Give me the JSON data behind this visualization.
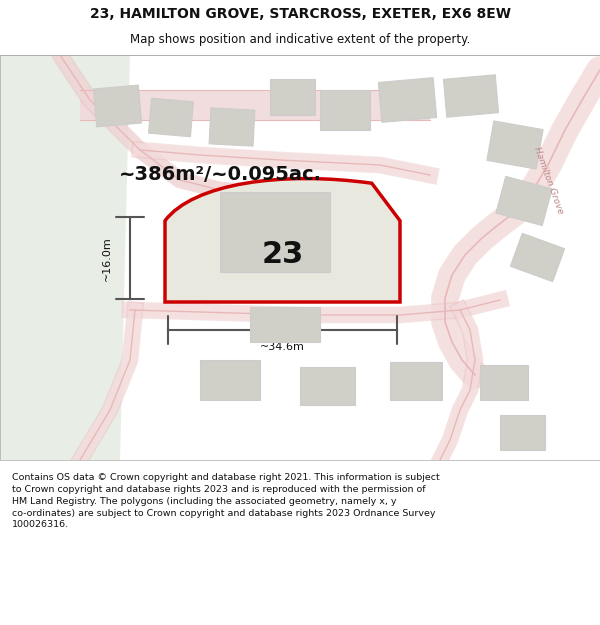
{
  "title": "23, HAMILTON GROVE, STARCROSS, EXETER, EX6 8EW",
  "subtitle": "Map shows position and indicative extent of the property.",
  "footer": "Contains OS data © Crown copyright and database right 2021. This information is subject\nto Crown copyright and database rights 2023 and is reproduced with the permission of\nHM Land Registry. The polygons (including the associated geometry, namely x, y\nco-ordinates) are subject to Crown copyright and database rights 2023 Ordnance Survey\n100026316.",
  "area_label": "~386m²/~0.095ac.",
  "width_label": "~34.6m",
  "height_label": "~16.0m",
  "plot_number": "23",
  "bg_color": "#f5f5f0",
  "map_bg": "#f5f5f0",
  "plot_fill": "#e8e8e0",
  "plot_border": "#cc0000",
  "building_fill": "#d0d0c8",
  "road_color": "#e8b8b8",
  "road_fill": "#f5e8e8",
  "green_area": "#e8ede8",
  "line_color": "#555555",
  "footer_box_color": "#ffffff",
  "road_label_color": "#cc9999",
  "hamilton_grove_label": "Hamilton Grove"
}
